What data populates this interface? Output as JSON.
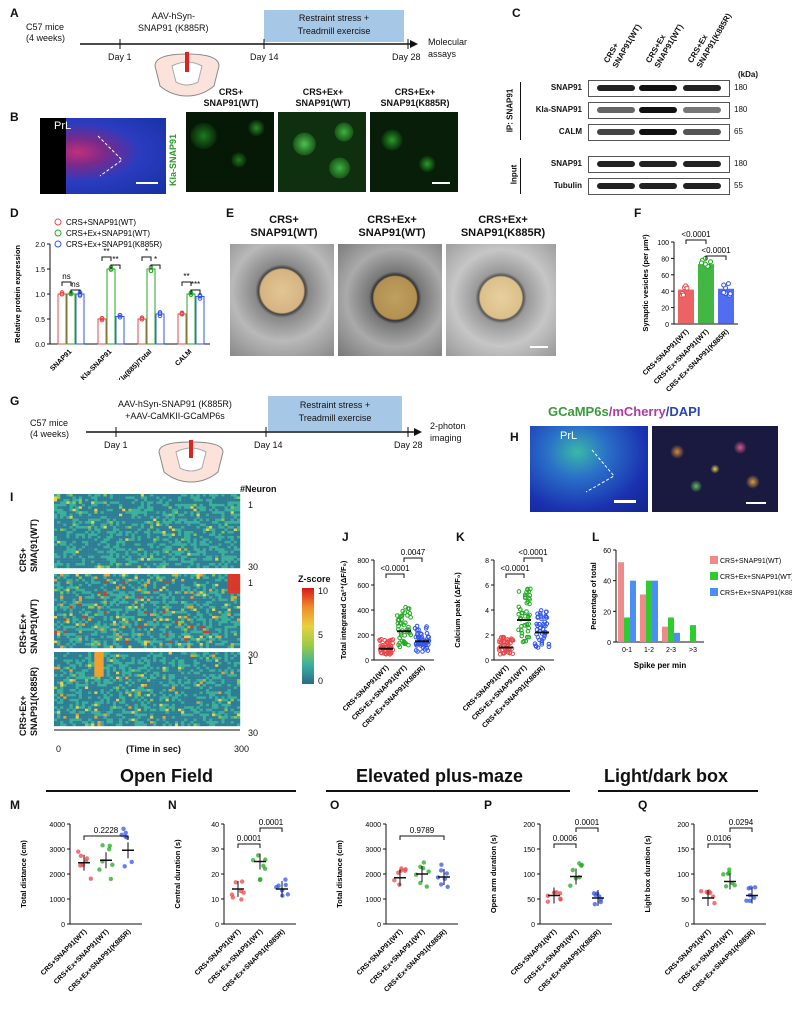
{
  "panels": {
    "A": "A",
    "B": "B",
    "C": "C",
    "D": "D",
    "E": "E",
    "F": "F",
    "G": "G",
    "H": "H",
    "I": "I",
    "J": "J",
    "K": "K",
    "L": "L",
    "M": "M",
    "N": "N",
    "O": "O",
    "P": "P",
    "Q": "Q"
  },
  "timeline1": {
    "mice": "C57 mice",
    "age": "(4 weeks)",
    "virus_l1": "AAV-hSyn-",
    "virus_l2": "SNAP91 (K885R)",
    "day1": "Day 1",
    "day14": "Day 14",
    "day28": "Day 28",
    "box_l1": "Restraint stress +",
    "box_l2": "Treadmill exercise",
    "end_l1": "Molecular",
    "end_l2": "assays"
  },
  "timeline2": {
    "mice": "C57 mice",
    "age": "(4 weeks)",
    "virus_l1": "AAV-hSyn-SNAP91  (K885R)",
    "virus_l2": "+AAV-CaMKII-GCaMP6s",
    "day1": "Day 1",
    "day14": "Day 14",
    "day28": "Day 28",
    "box_l1": "Restraint stress +",
    "box_l2": "Treadmill exercise",
    "end_l1": "2-photon",
    "end_l2": "imaging"
  },
  "panelB": {
    "region": "PrL",
    "ylabel": "Kla-SNAP91",
    "g1_l1": "CRS+",
    "g1_l2": "SNAP91(WT)",
    "g2_l1": "CRS+Ex+",
    "g2_l2": "SNAP91(WT)",
    "g3_l1": "CRS+Ex+",
    "g3_l2": "SNAP91(K885R)"
  },
  "panelC": {
    "col1_l1": "CRS+",
    "col1_l2": "SNAP91(WT)",
    "col2_l1": "CRS+Ex",
    "col2_l2": "SNAP91(WT)",
    "col3_l1": "CRS+Ex",
    "col3_l2": "SNAP91(K885R)",
    "unit": "(kDa)",
    "rows": [
      {
        "label": "SNAP91",
        "kda": "180"
      },
      {
        "label": "Kla-SNAP91",
        "kda": "180"
      },
      {
        "label": "CALM",
        "kda": "65"
      },
      {
        "label": "SNAP91",
        "kda": "180"
      },
      {
        "label": "Tubulin",
        "kda": "55"
      }
    ],
    "group_ip": "IP: SNAP91",
    "group_input": "Input"
  },
  "panelD": {
    "ylabel": "Relative protein expression",
    "legend": [
      "CRS+SNAP91(WT)",
      "CRS+Ex+SNAP91(WT)",
      "CRS+Ex+SNAP91(K885R)"
    ],
    "colors": [
      "#e8484a",
      "#22aa22",
      "#3355ee"
    ],
    "categories": [
      "SNAP91",
      "Kla-SNAP91",
      "Kla(885)/Total",
      "CALM"
    ],
    "stars": [
      "ns",
      "ns",
      "**",
      "**",
      "*",
      "*",
      "**",
      "***"
    ],
    "ticks": [
      "0.0",
      "0.5",
      "1.0",
      "1.5",
      "2.0"
    ]
  },
  "panelE": {
    "g1_l1": "CRS+",
    "g1_l2": "SNAP91(WT)",
    "g2_l1": "CRS+Ex+",
    "g2_l2": "SNAP91(WT)",
    "g3_l1": "CRS+Ex+",
    "g3_l2": "SNAP91(K885R)"
  },
  "panelF": {
    "ylabel": "Synaptic vesicles (per μm²)",
    "p1": "<0.0001",
    "p2": "<0.0001",
    "ticks": [
      "0",
      "20",
      "40",
      "60",
      "80",
      "100"
    ],
    "categories": [
      "CRS+SNAP91(WT)",
      "CRS+Ex+SNAP91(WT)",
      "CRS+Ex+SNAP91(K885R)"
    ]
  },
  "panelH": {
    "title_g": "GCaMP6s",
    "title_m": "/mCherry",
    "title_d": "/DAPI",
    "region": "PrL"
  },
  "panelI": {
    "neuron_hdr": "#Neuron",
    "n1": "1",
    "n30": "30",
    "xlabel": "(Time in sec)",
    "x0": "0",
    "x300": "300",
    "zlabel": "Z-score",
    "z10": "10",
    "z5": "5",
    "z0": "0",
    "g1_l1": "CRS+",
    "g1_l2": "SMA(91(WT)",
    "g2_l1": "CRS+Ex+",
    "g2_l2": "SNAP91(WT)",
    "g3_l1": "CRS+Ex+",
    "g3_l2": "SNAP91(K885R)"
  },
  "panelJ": {
    "ylabel": "Total integrated Ca²⁺(ΔF/F₀)",
    "p1": "<0.0001",
    "p2": "0.0047",
    "ticks": [
      "0",
      "200",
      "400",
      "600",
      "800"
    ]
  },
  "panelK": {
    "ylabel": "Calcium peak (ΔF/F₀)",
    "p1": "<0.0001",
    "p2": "<0.0001",
    "ticks": [
      "0",
      "2",
      "4",
      "6",
      "8"
    ]
  },
  "panelL": {
    "ylabel": "Percentage of total",
    "xlabel": "Spike per min",
    "ticks": [
      "0",
      "20",
      "40",
      "60"
    ]
  },
  "behavior": {
    "open_field": "Open Field",
    "plus_maze": "Elevated plus-maze",
    "light_dark": "Light/dark box"
  },
  "group_labels": [
    "CRS+SNAP91(WT)",
    "CRS+Ex+SNAP91(WT)",
    "CRS+Ex+SNAP91(K885R)"
  ],
  "panelM": {
    "ylabel": "Total distance (cm)",
    "p": "0.2228",
    "ticks": [
      "0",
      "1000",
      "2000",
      "3000",
      "4000"
    ]
  },
  "panelN": {
    "ylabel": "Central duration (s)",
    "p1": "0.0001",
    "p2": "0.0001",
    "ticks": [
      "0",
      "10",
      "20",
      "30",
      "40"
    ]
  },
  "panelO": {
    "ylabel": "Total distance (cm)",
    "p": "0.9789",
    "ticks": [
      "0",
      "1000",
      "2000",
      "3000",
      "4000"
    ]
  },
  "panelP": {
    "ylabel": "Open arm duration (s)",
    "p1": "0.0006",
    "p2": "0.0001",
    "ticks": [
      "0",
      "50",
      "100",
      "150",
      "200"
    ]
  },
  "panelQ": {
    "ylabel": "Light box duration (s)",
    "p1": "0.0106",
    "p2": "0.0294",
    "ticks": [
      "0",
      "50",
      "100",
      "150",
      "200"
    ]
  },
  "chart_data": [
    {
      "type": "bar",
      "id": "D",
      "categories": [
        "SNAP91",
        "Kla-SNAP91",
        "Kla(885)/Total",
        "CALM"
      ],
      "series": [
        {
          "name": "CRS+SNAP91(WT)",
          "values": [
            1.0,
            0.5,
            0.5,
            0.6
          ]
        },
        {
          "name": "CRS+Ex+SNAP91(WT)",
          "values": [
            1.0,
            1.5,
            1.5,
            1.0
          ]
        },
        {
          "name": "CRS+Ex+SNAP91(K885R)",
          "values": [
            1.0,
            0.55,
            0.6,
            0.95
          ]
        }
      ],
      "ylim": [
        0,
        2.0
      ]
    },
    {
      "type": "bar",
      "id": "F",
      "categories": [
        "CRS+SNAP91(WT)",
        "CRS+Ex+SNAP91(WT)",
        "CRS+Ex+SNAP91(K885R)"
      ],
      "values": [
        42,
        73,
        43
      ],
      "ylim": [
        0,
        100
      ]
    },
    {
      "type": "scatter",
      "id": "J",
      "categories": [
        "CRS+SNAP91(WT)",
        "CRS+Ex+SNAP91(WT)",
        "CRS+Ex+SNAP91(K885R)"
      ],
      "means": [
        90,
        230,
        150
      ],
      "ylim": [
        0,
        800
      ]
    },
    {
      "type": "scatter",
      "id": "K",
      "categories": [
        "CRS+SNAP91(WT)",
        "CRS+Ex+SNAP91(WT)",
        "CRS+Ex+SNAP91(K885R)"
      ],
      "means": [
        1.0,
        3.2,
        2.2
      ],
      "ylim": [
        0,
        8
      ]
    },
    {
      "type": "bar",
      "id": "L",
      "categories": [
        "0-1",
        "1-2",
        "2-3",
        ">3"
      ],
      "series": [
        {
          "name": "CRS+SNAP91(WT)",
          "values": [
            52,
            31,
            10,
            0
          ]
        },
        {
          "name": "CRS+Ex+SNAP91(WT)",
          "values": [
            16,
            40,
            16,
            11
          ]
        },
        {
          "name": "CRS+Ex+SNAP91(K885R)",
          "values": [
            40,
            40,
            6,
            0
          ]
        }
      ],
      "ylim": [
        0,
        60
      ]
    },
    {
      "type": "scatter",
      "id": "M",
      "means": [
        2450,
        2550,
        2950
      ],
      "ylim": [
        0,
        4000
      ]
    },
    {
      "type": "scatter",
      "id": "N",
      "means": [
        14,
        25,
        14
      ],
      "ylim": [
        0,
        40
      ]
    },
    {
      "type": "scatter",
      "id": "O",
      "means": [
        1850,
        2000,
        1880
      ],
      "ylim": [
        0,
        4000
      ]
    },
    {
      "type": "scatter",
      "id": "P",
      "means": [
        57,
        95,
        52
      ],
      "ylim": [
        0,
        200
      ]
    },
    {
      "type": "scatter",
      "id": "Q",
      "means": [
        52,
        85,
        57
      ],
      "ylim": [
        0,
        200
      ]
    }
  ]
}
